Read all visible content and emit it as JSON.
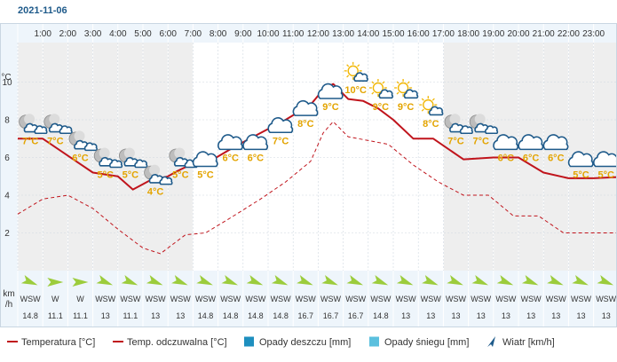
{
  "date": "2021-11-06",
  "y_unit": "°C",
  "wind_unit_line1": "km",
  "wind_unit_line2": "/h",
  "legend": [
    {
      "key": "temp",
      "label": "Temperatura [°C]"
    },
    {
      "key": "feels",
      "label": "Temp. odczuwalna [°C]"
    },
    {
      "key": "rain",
      "label": "Opady deszczu [mm]"
    },
    {
      "key": "snow",
      "label": "Opady śniegu [mm]"
    },
    {
      "key": "wind",
      "label": "Wiatr [km/h]"
    }
  ],
  "colors": {
    "temp": "#c0141c",
    "temp_label": "#e3a400",
    "rain": "#1e8fbf",
    "snow": "#5bc0de",
    "wind_arrow": "#9ccc3c",
    "grid": "#cfd8e0",
    "axis_text": "#333333",
    "header_bg": "#eef5fb",
    "night_bg": "#eeeeee",
    "cloud": "#1e5a8a",
    "sun": "#f2b705"
  },
  "chart_data": {
    "type": "line",
    "x": [
      "1:00",
      "2:00",
      "3:00",
      "4:00",
      "5:00",
      "6:00",
      "7:00",
      "8:00",
      "9:00",
      "10:00",
      "11:00",
      "12:00",
      "13:00",
      "14:00",
      "15:00",
      "16:00",
      "17:00",
      "18:00",
      "19:00",
      "20:00",
      "21:00",
      "22:00",
      "23:00"
    ],
    "ylim": [
      0,
      12
    ],
    "yticks": [
      2,
      4,
      6,
      8,
      10
    ],
    "ylabel": "°C",
    "series": [
      {
        "name": "Temperatura [°C]",
        "style": "solid",
        "points": [
          [
            0.0,
            7.0
          ],
          [
            1.0,
            7.0
          ],
          [
            2.0,
            6.1
          ],
          [
            3.0,
            5.2
          ],
          [
            4.0,
            5.0
          ],
          [
            4.6,
            4.3
          ],
          [
            5.3,
            4.8
          ],
          [
            6.0,
            5.0
          ],
          [
            6.4,
            5.3
          ],
          [
            7.2,
            5.8
          ],
          [
            7.8,
            5.9
          ],
          [
            8.7,
            6.6
          ],
          [
            9.7,
            7.3
          ],
          [
            10.7,
            8.0
          ],
          [
            11.7,
            8.8
          ],
          [
            12.2,
            9.6
          ],
          [
            12.6,
            9.9
          ],
          [
            13.2,
            9.1
          ],
          [
            13.8,
            9.0
          ],
          [
            14.4,
            8.6
          ],
          [
            15.0,
            8.0
          ],
          [
            15.8,
            7.0
          ],
          [
            16.6,
            7.0
          ],
          [
            17.8,
            5.9
          ],
          [
            19.0,
            6.0
          ],
          [
            20.0,
            6.0
          ],
          [
            21.0,
            5.2
          ],
          [
            22.0,
            4.9
          ],
          [
            23.0,
            4.9
          ],
          [
            24.5,
            5.0
          ]
        ]
      },
      {
        "name": "Temp. odczuwalna [°C]",
        "style": "dashed",
        "points": [
          [
            0.0,
            3.0
          ],
          [
            1.0,
            3.8
          ],
          [
            2.0,
            4.0
          ],
          [
            3.0,
            3.3
          ],
          [
            4.0,
            2.2
          ],
          [
            5.0,
            1.2
          ],
          [
            5.7,
            0.9
          ],
          [
            6.7,
            1.9
          ],
          [
            7.5,
            2.0
          ],
          [
            8.5,
            2.8
          ],
          [
            9.7,
            3.8
          ],
          [
            10.7,
            4.7
          ],
          [
            11.7,
            5.8
          ],
          [
            12.2,
            7.3
          ],
          [
            12.6,
            7.9
          ],
          [
            13.2,
            7.1
          ],
          [
            14.0,
            6.9
          ],
          [
            14.8,
            6.7
          ],
          [
            15.8,
            5.6
          ],
          [
            16.8,
            4.7
          ],
          [
            17.8,
            4.0
          ],
          [
            18.8,
            4.0
          ],
          [
            19.8,
            2.9
          ],
          [
            20.8,
            2.9
          ],
          [
            21.8,
            2.0
          ],
          [
            22.8,
            2.0
          ],
          [
            24.5,
            2.0
          ]
        ]
      }
    ],
    "temp_labels": [
      {
        "x": 0.5,
        "v": "7°C",
        "icon": "night-cloud"
      },
      {
        "x": 1.5,
        "v": "7°C",
        "icon": "night-cloud"
      },
      {
        "x": 2.5,
        "v": "6°C",
        "icon": "night-cloud"
      },
      {
        "x": 3.5,
        "v": "5°C",
        "icon": "night-cloud"
      },
      {
        "x": 4.5,
        "v": "5°C",
        "icon": "night-cloud"
      },
      {
        "x": 5.5,
        "v": "4°C",
        "icon": "night-cloud"
      },
      {
        "x": 6.5,
        "v": "5°C",
        "icon": "night-cloud"
      },
      {
        "x": 7.5,
        "v": "5°C",
        "icon": "cloud"
      },
      {
        "x": 8.5,
        "v": "6°C",
        "icon": "cloud"
      },
      {
        "x": 9.5,
        "v": "6°C",
        "icon": "cloud"
      },
      {
        "x": 10.5,
        "v": "7°C",
        "icon": "cloud"
      },
      {
        "x": 11.5,
        "v": "8°C",
        "icon": "cloud"
      },
      {
        "x": 12.5,
        "v": "9°C",
        "icon": "cloud"
      },
      {
        "x": 13.5,
        "v": "10°C",
        "icon": "sun-cloud"
      },
      {
        "x": 14.5,
        "v": "9°C",
        "icon": "sun-cloud"
      },
      {
        "x": 15.5,
        "v": "9°C",
        "icon": "sun-cloud"
      },
      {
        "x": 16.5,
        "v": "8°C",
        "icon": "sun-cloud"
      },
      {
        "x": 17.5,
        "v": "7°C",
        "icon": "night-cloud"
      },
      {
        "x": 18.5,
        "v": "7°C",
        "icon": "night-cloud"
      },
      {
        "x": 19.5,
        "v": "6°C",
        "icon": "cloud"
      },
      {
        "x": 20.5,
        "v": "6°C",
        "icon": "cloud"
      },
      {
        "x": 21.5,
        "v": "6°C",
        "icon": "cloud"
      },
      {
        "x": 22.5,
        "v": "5°C",
        "icon": "cloud"
      },
      {
        "x": 23.5,
        "v": "5°C",
        "icon": "cloud"
      }
    ],
    "label_y": [
      7.0,
      7.0,
      6.1,
      5.2,
      5.2,
      4.3,
      5.2,
      5.2,
      6.1,
      6.1,
      7.0,
      7.9,
      8.8,
      9.7,
      8.8,
      8.8,
      7.9,
      7.0,
      7.0,
      6.1,
      6.1,
      6.1,
      5.2,
      5.2
    ],
    "wind": [
      {
        "dir": "WSW",
        "speed": "14.8"
      },
      {
        "dir": "W",
        "speed": "11.1"
      },
      {
        "dir": "W",
        "speed": "11.1"
      },
      {
        "dir": "WSW",
        "speed": "13"
      },
      {
        "dir": "WSW",
        "speed": "11.1"
      },
      {
        "dir": "WSW",
        "speed": "13"
      },
      {
        "dir": "WSW",
        "speed": "13"
      },
      {
        "dir": "WSW",
        "speed": "14.8"
      },
      {
        "dir": "WSW",
        "speed": "14.8"
      },
      {
        "dir": "WSW",
        "speed": "14.8"
      },
      {
        "dir": "WSW",
        "speed": "14.8"
      },
      {
        "dir": "WSW",
        "speed": "16.7"
      },
      {
        "dir": "WSW",
        "speed": "16.7"
      },
      {
        "dir": "WSW",
        "speed": "16.7"
      },
      {
        "dir": "WSW",
        "speed": "14.8"
      },
      {
        "dir": "WSW",
        "speed": "13"
      },
      {
        "dir": "WSW",
        "speed": "13"
      },
      {
        "dir": "WSW",
        "speed": "13"
      },
      {
        "dir": "WSW",
        "speed": "13"
      },
      {
        "dir": "WSW",
        "speed": "13"
      },
      {
        "dir": "WSW",
        "speed": "13"
      },
      {
        "dir": "WSW",
        "speed": "13"
      },
      {
        "dir": "WSW",
        "speed": "13"
      },
      {
        "dir": "WSW",
        "speed": "13"
      }
    ],
    "night_ranges": [
      [
        0,
        7
      ],
      [
        17,
        24.5
      ]
    ]
  }
}
